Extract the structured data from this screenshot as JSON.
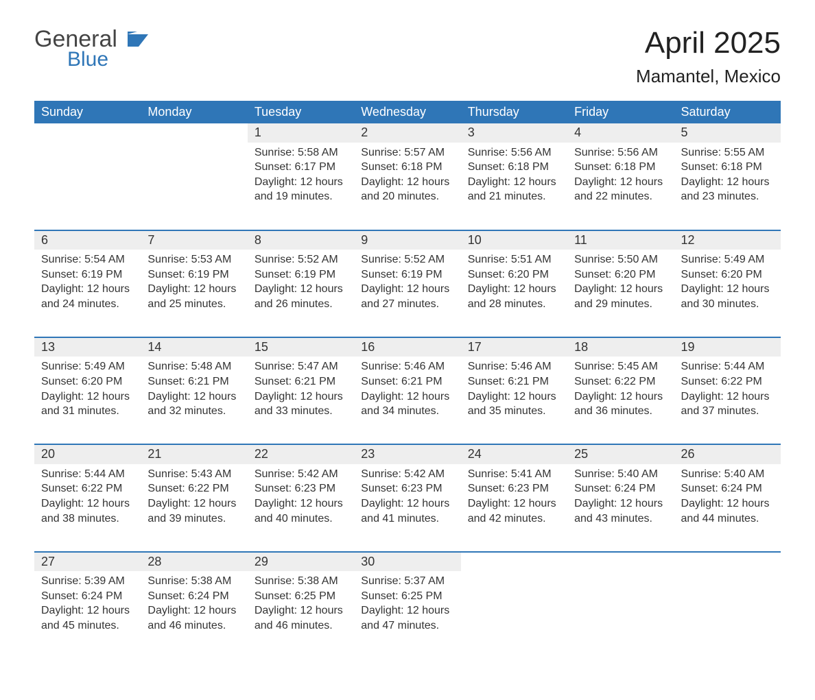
{
  "brand": {
    "general": "General",
    "blue": "Blue"
  },
  "title": "April 2025",
  "location": "Mamantel, Mexico",
  "colors": {
    "brand_blue": "#2f76b7",
    "row_grey": "#eeeeee",
    "text_dark": "#222222",
    "text_body": "#333333",
    "background": "#ffffff"
  },
  "days_of_week": [
    "Sunday",
    "Monday",
    "Tuesday",
    "Wednesday",
    "Thursday",
    "Friday",
    "Saturday"
  ],
  "weeks": [
    [
      null,
      null,
      {
        "n": "1",
        "sr": "Sunrise: 5:58 AM",
        "ss": "Sunset: 6:17 PM",
        "d1": "Daylight: 12 hours",
        "d2": "and 19 minutes."
      },
      {
        "n": "2",
        "sr": "Sunrise: 5:57 AM",
        "ss": "Sunset: 6:18 PM",
        "d1": "Daylight: 12 hours",
        "d2": "and 20 minutes."
      },
      {
        "n": "3",
        "sr": "Sunrise: 5:56 AM",
        "ss": "Sunset: 6:18 PM",
        "d1": "Daylight: 12 hours",
        "d2": "and 21 minutes."
      },
      {
        "n": "4",
        "sr": "Sunrise: 5:56 AM",
        "ss": "Sunset: 6:18 PM",
        "d1": "Daylight: 12 hours",
        "d2": "and 22 minutes."
      },
      {
        "n": "5",
        "sr": "Sunrise: 5:55 AM",
        "ss": "Sunset: 6:18 PM",
        "d1": "Daylight: 12 hours",
        "d2": "and 23 minutes."
      }
    ],
    [
      {
        "n": "6",
        "sr": "Sunrise: 5:54 AM",
        "ss": "Sunset: 6:19 PM",
        "d1": "Daylight: 12 hours",
        "d2": "and 24 minutes."
      },
      {
        "n": "7",
        "sr": "Sunrise: 5:53 AM",
        "ss": "Sunset: 6:19 PM",
        "d1": "Daylight: 12 hours",
        "d2": "and 25 minutes."
      },
      {
        "n": "8",
        "sr": "Sunrise: 5:52 AM",
        "ss": "Sunset: 6:19 PM",
        "d1": "Daylight: 12 hours",
        "d2": "and 26 minutes."
      },
      {
        "n": "9",
        "sr": "Sunrise: 5:52 AM",
        "ss": "Sunset: 6:19 PM",
        "d1": "Daylight: 12 hours",
        "d2": "and 27 minutes."
      },
      {
        "n": "10",
        "sr": "Sunrise: 5:51 AM",
        "ss": "Sunset: 6:20 PM",
        "d1": "Daylight: 12 hours",
        "d2": "and 28 minutes."
      },
      {
        "n": "11",
        "sr": "Sunrise: 5:50 AM",
        "ss": "Sunset: 6:20 PM",
        "d1": "Daylight: 12 hours",
        "d2": "and 29 minutes."
      },
      {
        "n": "12",
        "sr": "Sunrise: 5:49 AM",
        "ss": "Sunset: 6:20 PM",
        "d1": "Daylight: 12 hours",
        "d2": "and 30 minutes."
      }
    ],
    [
      {
        "n": "13",
        "sr": "Sunrise: 5:49 AM",
        "ss": "Sunset: 6:20 PM",
        "d1": "Daylight: 12 hours",
        "d2": "and 31 minutes."
      },
      {
        "n": "14",
        "sr": "Sunrise: 5:48 AM",
        "ss": "Sunset: 6:21 PM",
        "d1": "Daylight: 12 hours",
        "d2": "and 32 minutes."
      },
      {
        "n": "15",
        "sr": "Sunrise: 5:47 AM",
        "ss": "Sunset: 6:21 PM",
        "d1": "Daylight: 12 hours",
        "d2": "and 33 minutes."
      },
      {
        "n": "16",
        "sr": "Sunrise: 5:46 AM",
        "ss": "Sunset: 6:21 PM",
        "d1": "Daylight: 12 hours",
        "d2": "and 34 minutes."
      },
      {
        "n": "17",
        "sr": "Sunrise: 5:46 AM",
        "ss": "Sunset: 6:21 PM",
        "d1": "Daylight: 12 hours",
        "d2": "and 35 minutes."
      },
      {
        "n": "18",
        "sr": "Sunrise: 5:45 AM",
        "ss": "Sunset: 6:22 PM",
        "d1": "Daylight: 12 hours",
        "d2": "and 36 minutes."
      },
      {
        "n": "19",
        "sr": "Sunrise: 5:44 AM",
        "ss": "Sunset: 6:22 PM",
        "d1": "Daylight: 12 hours",
        "d2": "and 37 minutes."
      }
    ],
    [
      {
        "n": "20",
        "sr": "Sunrise: 5:44 AM",
        "ss": "Sunset: 6:22 PM",
        "d1": "Daylight: 12 hours",
        "d2": "and 38 minutes."
      },
      {
        "n": "21",
        "sr": "Sunrise: 5:43 AM",
        "ss": "Sunset: 6:22 PM",
        "d1": "Daylight: 12 hours",
        "d2": "and 39 minutes."
      },
      {
        "n": "22",
        "sr": "Sunrise: 5:42 AM",
        "ss": "Sunset: 6:23 PM",
        "d1": "Daylight: 12 hours",
        "d2": "and 40 minutes."
      },
      {
        "n": "23",
        "sr": "Sunrise: 5:42 AM",
        "ss": "Sunset: 6:23 PM",
        "d1": "Daylight: 12 hours",
        "d2": "and 41 minutes."
      },
      {
        "n": "24",
        "sr": "Sunrise: 5:41 AM",
        "ss": "Sunset: 6:23 PM",
        "d1": "Daylight: 12 hours",
        "d2": "and 42 minutes."
      },
      {
        "n": "25",
        "sr": "Sunrise: 5:40 AM",
        "ss": "Sunset: 6:24 PM",
        "d1": "Daylight: 12 hours",
        "d2": "and 43 minutes."
      },
      {
        "n": "26",
        "sr": "Sunrise: 5:40 AM",
        "ss": "Sunset: 6:24 PM",
        "d1": "Daylight: 12 hours",
        "d2": "and 44 minutes."
      }
    ],
    [
      {
        "n": "27",
        "sr": "Sunrise: 5:39 AM",
        "ss": "Sunset: 6:24 PM",
        "d1": "Daylight: 12 hours",
        "d2": "and 45 minutes."
      },
      {
        "n": "28",
        "sr": "Sunrise: 5:38 AM",
        "ss": "Sunset: 6:24 PM",
        "d1": "Daylight: 12 hours",
        "d2": "and 46 minutes."
      },
      {
        "n": "29",
        "sr": "Sunrise: 5:38 AM",
        "ss": "Sunset: 6:25 PM",
        "d1": "Daylight: 12 hours",
        "d2": "and 46 minutes."
      },
      {
        "n": "30",
        "sr": "Sunrise: 5:37 AM",
        "ss": "Sunset: 6:25 PM",
        "d1": "Daylight: 12 hours",
        "d2": "and 47 minutes."
      },
      null,
      null,
      null
    ]
  ]
}
